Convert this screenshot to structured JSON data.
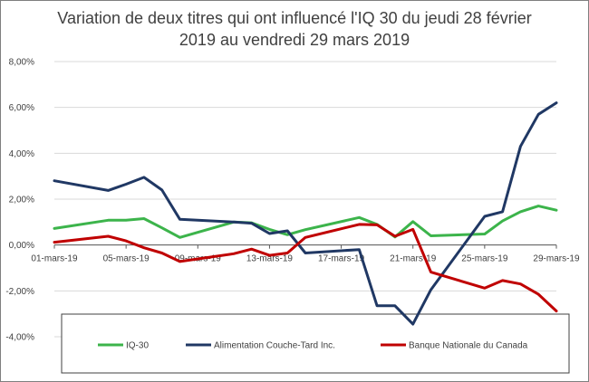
{
  "chart_data": {
    "type": "line",
    "title_line1": "Variation de deux titres qui ont influencé l'IQ 30 du jeudi 28 février",
    "title_line2": "2019 au vendredi 29 mars 2019",
    "x": [
      "01-mars-19",
      "04-mars-19",
      "05-mars-19",
      "06-mars-19",
      "07-mars-19",
      "08-mars-19",
      "11-mars-19",
      "12-mars-19",
      "13-mars-19",
      "14-mars-19",
      "15-mars-19",
      "18-mars-19",
      "19-mars-19",
      "20-mars-19",
      "21-mars-19",
      "22-mars-19",
      "25-mars-19",
      "26-mars-19",
      "27-mars-19",
      "28-mars-19",
      "29-mars-19"
    ],
    "x_pos": [
      1,
      4,
      5,
      6,
      7,
      8,
      11,
      12,
      13,
      14,
      15,
      18,
      19,
      20,
      21,
      22,
      25,
      26,
      27,
      28,
      29
    ],
    "x_tick_labels": [
      "01-mars-19",
      "05-mars-19",
      "09-mars-19",
      "13-mars-19",
      "17-mars-19",
      "21-mars-19",
      "25-mars-19",
      "29-mars-19"
    ],
    "x_tick_pos": [
      1,
      5,
      9,
      13,
      17,
      21,
      25,
      29
    ],
    "xlim": [
      1,
      29
    ],
    "ylim": [
      -4,
      8
    ],
    "y_ticks": [
      -4,
      -2,
      0,
      2,
      4,
      6,
      8
    ],
    "y_tick_labels": [
      "-4,00%",
      "-2,00%",
      "0,00%",
      "2,00%",
      "4,00%",
      "6,00%",
      "8,00%"
    ],
    "series": [
      {
        "name": "IQ-30",
        "color": "#3cb44b",
        "values": [
          0.72,
          1.08,
          1.08,
          1.15,
          0.75,
          0.33,
          1.0,
          0.97,
          0.68,
          0.45,
          0.67,
          1.2,
          0.9,
          0.35,
          1.02,
          0.4,
          0.48,
          1.05,
          1.45,
          1.7,
          1.52
        ]
      },
      {
        "name": "Alimentation Couche-Tard Inc.",
        "color": "#203864",
        "values": [
          2.8,
          2.38,
          2.65,
          2.95,
          2.4,
          1.12,
          1.0,
          0.95,
          0.5,
          0.62,
          -0.35,
          -0.2,
          -2.65,
          -2.65,
          -3.45,
          -1.95,
          1.25,
          1.45,
          4.3,
          5.7,
          6.2
        ]
      },
      {
        "name": "Banque Nationale du Canada",
        "color": "#c00000",
        "values": [
          0.12,
          0.38,
          0.18,
          -0.12,
          -0.35,
          -0.72,
          -0.38,
          -0.18,
          -0.45,
          -0.35,
          0.33,
          0.9,
          0.88,
          0.38,
          0.68,
          -1.18,
          -1.88,
          -1.55,
          -1.7,
          -2.15,
          -2.88
        ]
      }
    ],
    "legend_position": "bottom",
    "grid": "horizontal"
  }
}
